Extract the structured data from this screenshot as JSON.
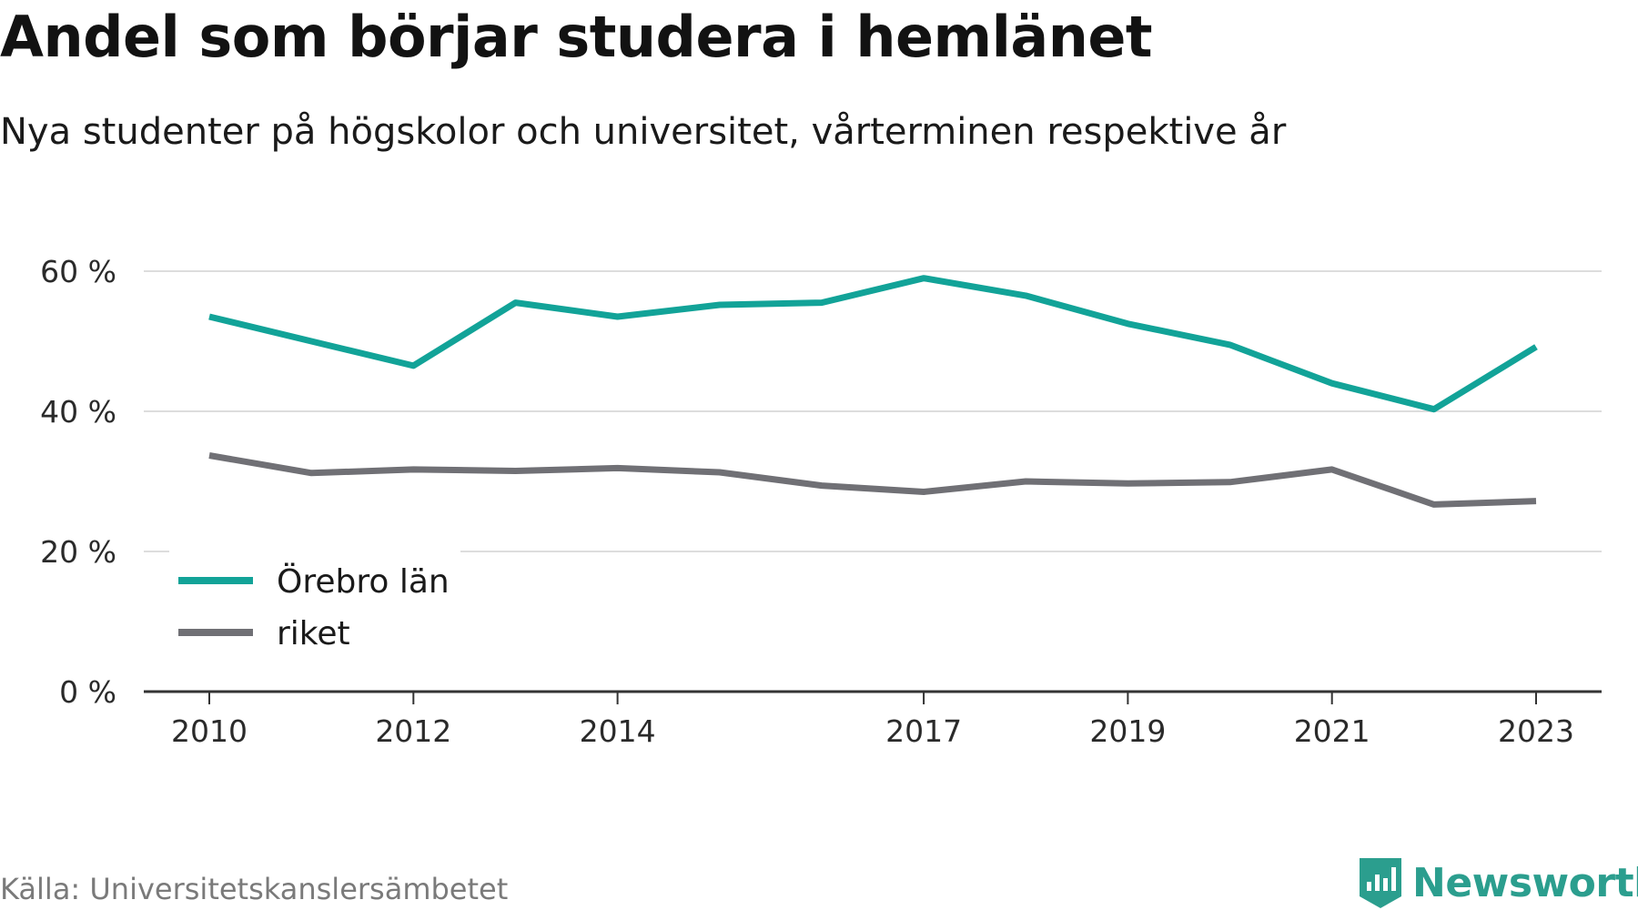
{
  "header": {
    "title": "Andel som börjar studera i hemlänet",
    "subtitle": "Nya studenter på högskolor och universitet, vårterminen respektive år"
  },
  "footer": {
    "source": "Källa: Universitetskanslersämbetet",
    "brand": "Newsworthy",
    "brand_icon": "newsworthy-logo-icon"
  },
  "colors": {
    "orebro": "#12a398",
    "riket": "#707075",
    "grid": "#dddddd",
    "axis": "#333333",
    "brand": "#2b9e8e"
  },
  "chart_data": {
    "type": "line",
    "x": [
      2010,
      2011,
      2012,
      2013,
      2014,
      2015,
      2016,
      2017,
      2018,
      2019,
      2020,
      2021,
      2022,
      2023
    ],
    "x_ticks": [
      "2010",
      "2012",
      "2014",
      "2017",
      "2019",
      "2021",
      "2023"
    ],
    "y_ticks": [
      {
        "value": 0,
        "label": "0 %"
      },
      {
        "value": 20,
        "label": "20 %"
      },
      {
        "value": 40,
        "label": "40 %"
      },
      {
        "value": 60,
        "label": "60 %"
      }
    ],
    "ylim": [
      0,
      60
    ],
    "grid": true,
    "legend_position": "bottom-left",
    "series": [
      {
        "name": "Örebro län",
        "color": "#12a398",
        "values": [
          53.5,
          50,
          46.5,
          55.5,
          53.5,
          55.2,
          55.5,
          59,
          56.5,
          52.5,
          49.5,
          44,
          40.3,
          49.2
        ]
      },
      {
        "name": "riket",
        "color": "#707075",
        "values": [
          33.7,
          31.2,
          31.7,
          31.5,
          31.9,
          31.3,
          29.4,
          28.5,
          30,
          29.7,
          29.9,
          31.7,
          26.7,
          27.2
        ]
      }
    ]
  }
}
